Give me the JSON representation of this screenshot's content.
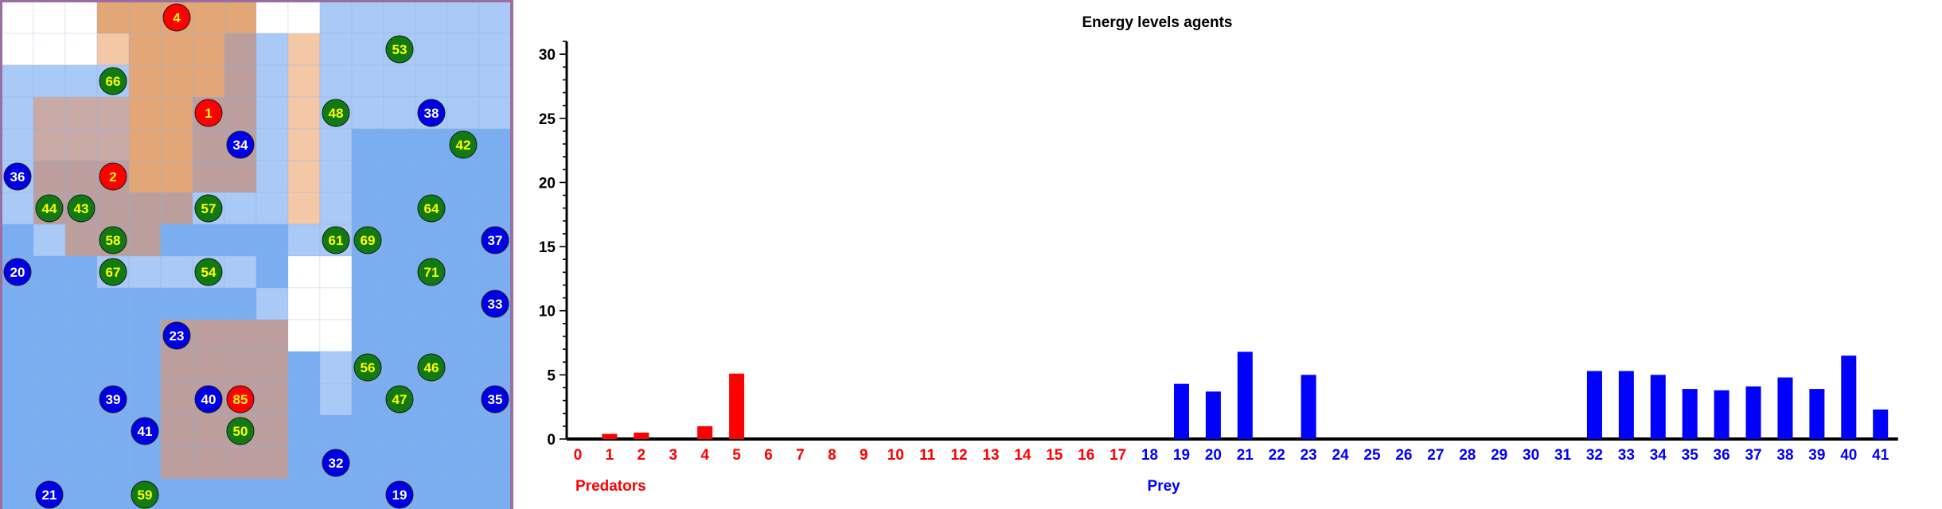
{
  "grid_panel": {
    "cols": 16,
    "rows": 16,
    "colors": {
      "white": "#ffffff",
      "light_blue": "#a9c9f6",
      "medium_blue": "#7aaef0",
      "orange": "#e3a677",
      "light_orange": "#f4c8a6",
      "dusty": "#bc9f9c",
      "dusty_light": "#c9aaa6",
      "border": "#9b6ea2",
      "predator_color": "#ff0000",
      "prey_color": "#0000e6",
      "plant_color": "#117a11",
      "predator_label_color": "#ffff00",
      "prey_label_color": "#ffffff",
      "plant_label_color": "#ffff00"
    },
    "cell_types": [
      "WWWOOOOOWWBBBBBB",
      "WWWLOOOPBLBBBBBB",
      "BBBBOOOPBLBBBBBB",
      "BDDDOOPPBLBBBBBB",
      "BDDDOOPPBLBMMMMM",
      "BPPPOOPPBLBMMMMM",
      "BPPPPPBBBLBMMMMM",
      "MBPPPMMMMBBMMMMM",
      "MMMBBBBBMWWMMMMM",
      "MMMMMMMMBWWMMMMM",
      "MMMMMPPPPWWMMMMM",
      "MMMMMPPPPMBMMMMM",
      "MMMMMPPPPMBMMMMM",
      "MMMMMPPPPMMMMMMM",
      "MMMMMPPPPMMMMMMM",
      "MMMMMMMMMMMMMMMM"
    ],
    "agents": [
      {
        "id": "4",
        "kind": "predator",
        "col": 5,
        "row": 0
      },
      {
        "id": "1",
        "kind": "predator",
        "col": 6,
        "row": 3
      },
      {
        "id": "2",
        "kind": "predator",
        "col": 3,
        "row": 5
      },
      {
        "id": "85",
        "kind": "predator",
        "col": 7,
        "row": 12
      },
      {
        "id": "34",
        "kind": "prey",
        "col": 7,
        "row": 4
      },
      {
        "id": "38",
        "kind": "prey",
        "col": 13,
        "row": 3
      },
      {
        "id": "36",
        "kind": "prey",
        "col": 0,
        "row": 5
      },
      {
        "id": "37",
        "kind": "prey",
        "col": 15,
        "row": 7
      },
      {
        "id": "20",
        "kind": "prey",
        "col": 0,
        "row": 8
      },
      {
        "id": "33",
        "kind": "prey",
        "col": 15,
        "row": 9
      },
      {
        "id": "23",
        "kind": "prey",
        "col": 5,
        "row": 10
      },
      {
        "id": "39",
        "kind": "prey",
        "col": 3,
        "row": 12
      },
      {
        "id": "40",
        "kind": "prey",
        "col": 6,
        "row": 12
      },
      {
        "id": "35",
        "kind": "prey",
        "col": 15,
        "row": 12
      },
      {
        "id": "41",
        "kind": "prey",
        "col": 4,
        "row": 13
      },
      {
        "id": "32",
        "kind": "prey",
        "col": 10,
        "row": 14
      },
      {
        "id": "21",
        "kind": "prey",
        "col": 1,
        "row": 15
      },
      {
        "id": "19",
        "kind": "prey",
        "col": 12,
        "row": 15
      },
      {
        "id": "53",
        "kind": "plant",
        "col": 12,
        "row": 1
      },
      {
        "id": "66",
        "kind": "plant",
        "col": 3,
        "row": 2
      },
      {
        "id": "48",
        "kind": "plant",
        "col": 10,
        "row": 3
      },
      {
        "id": "42",
        "kind": "plant",
        "col": 14,
        "row": 4
      },
      {
        "id": "44",
        "kind": "plant",
        "col": 1,
        "row": 6
      },
      {
        "id": "43",
        "kind": "plant",
        "col": 2,
        "row": 6
      },
      {
        "id": "57",
        "kind": "plant",
        "col": 6,
        "row": 6
      },
      {
        "id": "64",
        "kind": "plant",
        "col": 13,
        "row": 6
      },
      {
        "id": "58",
        "kind": "plant",
        "col": 3,
        "row": 7
      },
      {
        "id": "61",
        "kind": "plant",
        "col": 10,
        "row": 7
      },
      {
        "id": "69",
        "kind": "plant",
        "col": 11,
        "row": 7
      },
      {
        "id": "67",
        "kind": "plant",
        "col": 3,
        "row": 8
      },
      {
        "id": "54",
        "kind": "plant",
        "col": 6,
        "row": 8
      },
      {
        "id": "71",
        "kind": "plant",
        "col": 13,
        "row": 8
      },
      {
        "id": "56",
        "kind": "plant",
        "col": 11,
        "row": 11
      },
      {
        "id": "46",
        "kind": "plant",
        "col": 13,
        "row": 11
      },
      {
        "id": "47",
        "kind": "plant",
        "col": 12,
        "row": 12
      },
      {
        "id": "50",
        "kind": "plant",
        "col": 7,
        "row": 13
      },
      {
        "id": "59",
        "kind": "plant",
        "col": 4,
        "row": 15
      }
    ]
  },
  "chart_data": {
    "type": "bar",
    "title": "Energy levels agents",
    "ylim": [
      0,
      31
    ],
    "y_major_ticks": [
      0,
      5,
      10,
      15,
      20,
      25,
      30
    ],
    "y_minor_step": 1,
    "groups": [
      {
        "name": "Predators",
        "color": "#ff0000",
        "categories": [
          "0",
          "1",
          "2",
          "3",
          "4",
          "5",
          "6",
          "7",
          "8",
          "9",
          "10",
          "11",
          "12",
          "13",
          "14",
          "15",
          "16",
          "17"
        ],
        "values": [
          0,
          0.4,
          0.5,
          0,
          1.0,
          5.1,
          0,
          0,
          0,
          0,
          0,
          0,
          0,
          0,
          0,
          0,
          0,
          0
        ]
      },
      {
        "name": "Prey",
        "color": "#0000ff",
        "categories": [
          "18",
          "19",
          "20",
          "21",
          "22",
          "23",
          "24",
          "25",
          "26",
          "27",
          "28",
          "29",
          "30",
          "31",
          "32",
          "33",
          "34",
          "35",
          "36",
          "37",
          "38",
          "39",
          "40",
          "41"
        ],
        "values": [
          0,
          4.3,
          3.7,
          6.8,
          0,
          5.0,
          0,
          0,
          0,
          0,
          0,
          0,
          0,
          0,
          5.3,
          5.3,
          5.0,
          3.9,
          3.8,
          4.1,
          4.8,
          3.9,
          6.5,
          2.3
        ]
      }
    ]
  }
}
